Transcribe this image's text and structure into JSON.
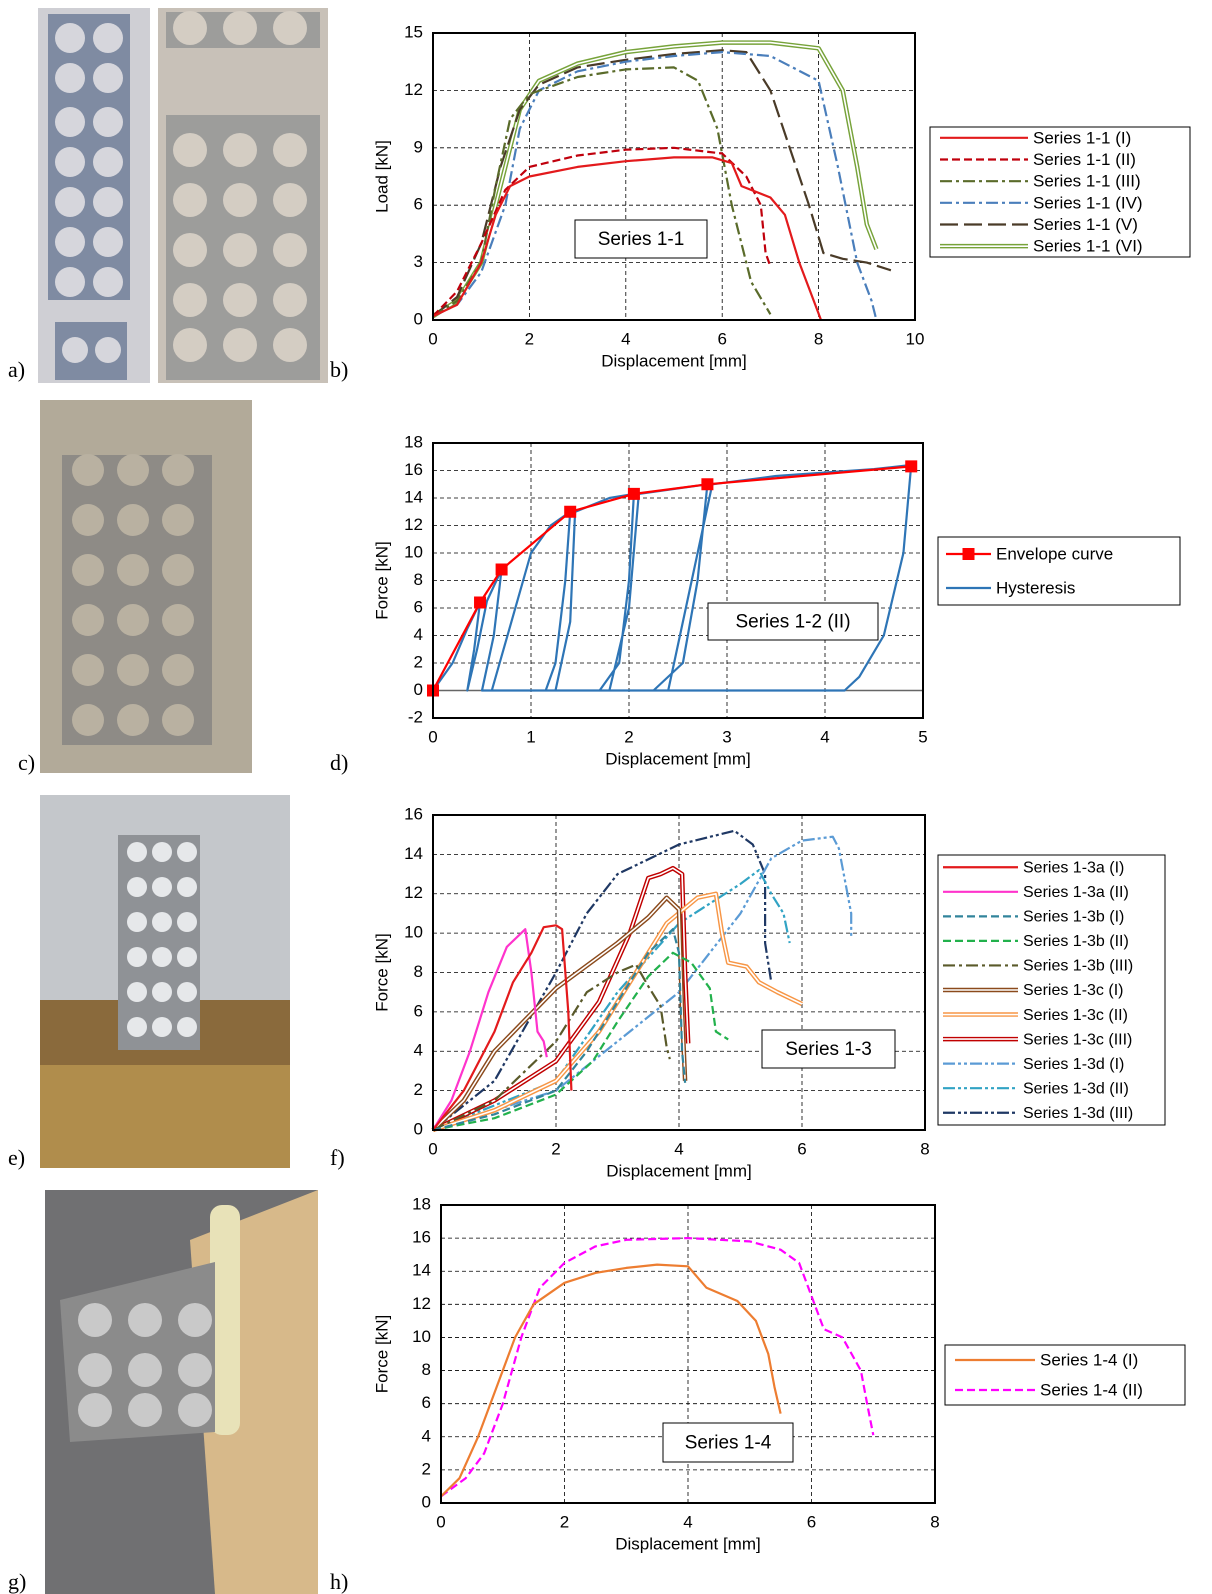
{
  "panel_labels": [
    "a)",
    "b)",
    "c)",
    "d)",
    "e)",
    "f)",
    "g)",
    "h)"
  ],
  "chart_data": [
    {
      "type": "line",
      "annotation": "Series 1-1",
      "x_label": "Displacement [mm]",
      "y_label": "Load [kN]",
      "xlim": [
        0,
        10
      ],
      "ylim": [
        0,
        15
      ],
      "xticks": [
        0,
        2,
        4,
        6,
        8,
        10
      ],
      "yticks": [
        0,
        3,
        6,
        9,
        12,
        15
      ],
      "grid": true,
      "series": [
        {
          "name": "Series 1-1 (I)",
          "color": "#e31a1c",
          "style": "solid",
          "x": [
            0,
            0.5,
            1,
            1.3,
            1.6,
            2,
            3,
            4,
            5,
            5.8,
            6.2,
            6.4,
            7,
            7.3,
            7.6,
            7.9,
            8.05
          ],
          "values": [
            0.2,
            0.8,
            3,
            5.5,
            7,
            7.5,
            8,
            8.3,
            8.5,
            8.5,
            8.2,
            7,
            6.4,
            5.5,
            3,
            1,
            0
          ]
        },
        {
          "name": "Series 1-1 (II)",
          "color": "#c0000c",
          "style": "dashed",
          "x": [
            0,
            0.5,
            1,
            1.5,
            2,
            3,
            4,
            5,
            6,
            6.5,
            6.8,
            6.9,
            7
          ],
          "values": [
            0.2,
            1.5,
            4,
            6.8,
            8,
            8.6,
            8.9,
            9,
            8.7,
            7.5,
            6,
            3.5,
            2.8
          ]
        },
        {
          "name": "Series 1-1 (III)",
          "color": "#5a6b2a",
          "style": "dashdot",
          "x": [
            0,
            0.5,
            1,
            1.3,
            1.6,
            2,
            3,
            4,
            5,
            5.5,
            5.9,
            6.2,
            6.6,
            7
          ],
          "values": [
            0.2,
            1,
            3,
            7,
            10.5,
            11.8,
            12.7,
            13.1,
            13.2,
            12.5,
            10,
            6,
            2,
            0.3
          ]
        },
        {
          "name": "Series 1-1 (IV)",
          "color": "#4a7ebb",
          "style": "dashdot",
          "x": [
            0,
            0.5,
            1,
            1.5,
            1.8,
            2.2,
            3,
            4,
            5,
            6,
            7,
            8,
            8.4,
            8.8,
            9.1,
            9.2
          ],
          "values": [
            0.2,
            0.8,
            2.5,
            6,
            10,
            12,
            13,
            13.5,
            13.8,
            14,
            13.8,
            12.5,
            8,
            3,
            1,
            0
          ]
        },
        {
          "name": "Series 1-1 (V)",
          "color": "#4a3b28",
          "style": "longdash",
          "x": [
            0,
            0.5,
            1,
            1.4,
            1.8,
            2.2,
            3,
            4,
            5,
            6,
            6.5,
            7,
            7.4,
            7.8,
            8.1,
            8.5,
            9,
            9.5
          ],
          "values": [
            0.2,
            1.2,
            4,
            8,
            11,
            12.3,
            13.2,
            13.6,
            13.9,
            14.1,
            14,
            12,
            9,
            6,
            3.5,
            3.2,
            3,
            2.6
          ]
        },
        {
          "name": "Series 1-1 (VI)",
          "color": "#77a33a",
          "style": "double",
          "x": [
            0,
            0.5,
            1,
            1.4,
            1.8,
            2.2,
            3,
            4,
            5,
            6,
            7,
            8,
            8.5,
            8.8,
            9,
            9.2
          ],
          "values": [
            0.2,
            1,
            3,
            7,
            11,
            12.5,
            13.4,
            14,
            14.3,
            14.5,
            14.5,
            14.2,
            12,
            8,
            5,
            3.7
          ]
        }
      ]
    },
    {
      "type": "line",
      "annotation": "Series 1-2 (II)",
      "x_label": "Displacement [mm]",
      "y_label": "Force [kN]",
      "xlim": [
        0,
        5
      ],
      "ylim": [
        -2,
        18
      ],
      "xticks": [
        0,
        1,
        2,
        3,
        4,
        5
      ],
      "yticks": [
        -2,
        0,
        2,
        4,
        6,
        8,
        10,
        12,
        14,
        16,
        18
      ],
      "grid": true,
      "series": [
        {
          "name": "Envelope curve",
          "color": "#ff0000",
          "style": "solid",
          "marker": "square",
          "x": [
            0,
            0.48,
            0.7,
            1.4,
            2.05,
            2.8,
            4.88
          ],
          "values": [
            0,
            6.4,
            8.8,
            13,
            14.3,
            15,
            16.3
          ]
        },
        {
          "name": "Hysteresis",
          "color": "#2e75b6",
          "style": "solid",
          "x": [
            0,
            0.2,
            0.35,
            0.48,
            0.42,
            0.35,
            0.45,
            0.55,
            0.7,
            0.62,
            0.5,
            0.6,
            0.8,
            1,
            1.2,
            1.4,
            1.35,
            1.25,
            1.15,
            1.25,
            1.4,
            1.45,
            1.8,
            2.05,
            2,
            1.9,
            1.7,
            1.8,
            2,
            2.1,
            2.5,
            2.8,
            2.7,
            2.55,
            2.25,
            2.4,
            2.7,
            2.85,
            3.5,
            4.5,
            4.88,
            4.8,
            4.6,
            4.35,
            4.2,
            2,
            0.5
          ],
          "values": [
            0,
            2,
            4.5,
            6.4,
            3,
            0,
            3,
            6.5,
            8.8,
            4,
            0,
            0,
            5,
            10,
            12,
            13,
            8,
            2,
            0,
            0,
            5,
            13,
            14,
            14.3,
            8,
            2,
            0,
            0,
            6,
            14.3,
            14.7,
            15,
            8,
            2,
            0,
            0,
            10,
            15,
            15.6,
            16.1,
            16.4,
            10,
            4,
            1,
            0,
            0,
            0
          ]
        }
      ]
    },
    {
      "type": "line",
      "annotation": "Series 1-3",
      "x_label": "Displacement [mm]",
      "y_label": "Force [kN]",
      "xlim": [
        0,
        8
      ],
      "ylim": [
        0,
        16
      ],
      "xticks": [
        0,
        2,
        4,
        6,
        8
      ],
      "yticks": [
        0,
        2,
        4,
        6,
        8,
        10,
        12,
        14,
        16
      ],
      "grid": true,
      "series": [
        {
          "name": "Series 1-3a (I)",
          "color": "#e31a1c",
          "style": "solid",
          "x": [
            0,
            0.5,
            1,
            1.3,
            1.6,
            1.8,
            2,
            2.1,
            2.2,
            2.25
          ],
          "values": [
            0,
            2,
            5,
            7.5,
            9,
            10.3,
            10.4,
            10.2,
            6,
            2
          ]
        },
        {
          "name": "Series 1-3a (II)",
          "color": "#ff33cc",
          "style": "solid",
          "x": [
            0,
            0.3,
            0.6,
            0.9,
            1.2,
            1.5,
            1.6,
            1.7,
            1.8,
            1.85
          ],
          "values": [
            0,
            1.5,
            4,
            7,
            9.3,
            10.2,
            8,
            5,
            4.5,
            3.7
          ]
        },
        {
          "name": "Series 1-3b (I)",
          "color": "#31849b",
          "style": "dashed",
          "x": [
            0,
            1,
            2,
            2.5,
            3,
            3.5,
            3.9,
            4,
            4.05,
            4.1
          ],
          "values": [
            0,
            0.8,
            2,
            4,
            6.5,
            9,
            10.2,
            9,
            4,
            2.4
          ]
        },
        {
          "name": "Series 1-3b (II)",
          "color": "#22b14c",
          "style": "dashed",
          "x": [
            0,
            1,
            2,
            2.6,
            3,
            3.5,
            3.9,
            4.2,
            4.5,
            4.6,
            4.8
          ],
          "values": [
            0,
            0.6,
            1.8,
            3.5,
            5.5,
            7.8,
            9,
            8.5,
            7.2,
            5,
            4.6
          ]
        },
        {
          "name": "Series 1-3b (III)",
          "color": "#5a5a2a",
          "style": "dashdot",
          "x": [
            0,
            1,
            2,
            2.5,
            3,
            3.3,
            3.5,
            3.7,
            3.8,
            3.85
          ],
          "values": [
            0,
            1.5,
            4.5,
            7,
            8,
            8.4,
            7.3,
            6.3,
            4.2,
            3.6
          ]
        },
        {
          "name": "Series 1-3c (I)",
          "color": "#8b4a1c",
          "style": "double",
          "x": [
            0,
            0.5,
            1,
            2,
            3,
            3.5,
            3.8,
            4,
            4.05,
            4.1
          ],
          "values": [
            0,
            1.5,
            4,
            7.2,
            9.5,
            10.8,
            11.8,
            11.2,
            6,
            2.5
          ]
        },
        {
          "name": "Series 1-3c (II)",
          "color": "#f79646",
          "style": "double",
          "x": [
            0,
            1,
            2,
            2.7,
            3.3,
            3.8,
            4.3,
            4.6,
            4.7,
            4.8,
            5.1,
            5.3,
            5.6,
            6
          ],
          "values": [
            0,
            1,
            2.5,
            5,
            8,
            10.5,
            11.8,
            12,
            10,
            8.5,
            8.3,
            7.5,
            7,
            6.4
          ]
        },
        {
          "name": "Series 1-3c (III)",
          "color": "#c00000",
          "style": "double",
          "x": [
            0,
            1,
            2,
            2.7,
            3.2,
            3.5,
            3.7,
            3.9,
            4.05,
            4.1,
            4.15
          ],
          "values": [
            0,
            1.5,
            3.5,
            6.5,
            10,
            12.8,
            13,
            13.3,
            13,
            8,
            4.4
          ]
        },
        {
          "name": "Series 1-3d (I)",
          "color": "#5b9bd5",
          "style": "dashdotdot",
          "x": [
            0,
            2,
            3,
            4,
            5,
            5.5,
            6,
            6.5,
            6.6,
            6.8,
            6.8
          ],
          "values": [
            0,
            2,
            4.5,
            7,
            11,
            13.8,
            14.7,
            14.9,
            14.3,
            11,
            9.8
          ]
        },
        {
          "name": "Series 1-3d (II)",
          "color": "#31a3c4",
          "style": "dashdotdot",
          "x": [
            0,
            2,
            3,
            4,
            5,
            5.3,
            5.5,
            5.7,
            5.8
          ],
          "values": [
            0,
            2.5,
            7,
            10.5,
            12.5,
            13.2,
            12,
            11,
            9.5
          ]
        },
        {
          "name": "Series 1-3d (III)",
          "color": "#1f3864",
          "style": "dashdotdot",
          "x": [
            0,
            1,
            2,
            2.5,
            3,
            4,
            4.9,
            5.2,
            5.4,
            5.4,
            5.5
          ],
          "values": [
            0,
            2.5,
            8,
            11,
            13,
            14.5,
            15.2,
            14.5,
            13,
            9.5,
            7.5
          ]
        }
      ]
    },
    {
      "type": "line",
      "annotation": "Series 1-4",
      "x_label": "Displacement [mm]",
      "y_label": "Force [kN]",
      "xlim": [
        0,
        8
      ],
      "ylim": [
        0,
        18
      ],
      "xticks": [
        0,
        2,
        4,
        6,
        8
      ],
      "yticks": [
        0,
        2,
        4,
        6,
        8,
        10,
        12,
        14,
        16,
        18
      ],
      "grid": true,
      "series": [
        {
          "name": "Series 1-4 (I)",
          "color": "#ed7d31",
          "style": "solid",
          "x": [
            0,
            0.3,
            0.6,
            0.9,
            1.2,
            1.5,
            2,
            2.5,
            3,
            3.5,
            4,
            4.3,
            4.8,
            5.1,
            5.3,
            5.4,
            5.5
          ],
          "values": [
            0.4,
            1.5,
            4,
            7,
            10,
            12,
            13.3,
            13.9,
            14.2,
            14.4,
            14.3,
            13,
            12.2,
            11,
            9,
            7,
            5.4
          ]
        },
        {
          "name": "Series 1-4 (II)",
          "color": "#ff00ff",
          "style": "dashed",
          "x": [
            0,
            0.4,
            0.7,
            1,
            1.3,
            1.6,
            2,
            2.5,
            3,
            4,
            5,
            5.5,
            5.8,
            6,
            6.2,
            6.5,
            6.8,
            6.9,
            7
          ],
          "values": [
            0.4,
            1.5,
            3,
            6,
            10,
            13,
            14.5,
            15.5,
            15.9,
            16,
            15.8,
            15.3,
            14.5,
            12.5,
            10.5,
            10,
            8,
            6,
            4.1
          ]
        }
      ]
    }
  ]
}
